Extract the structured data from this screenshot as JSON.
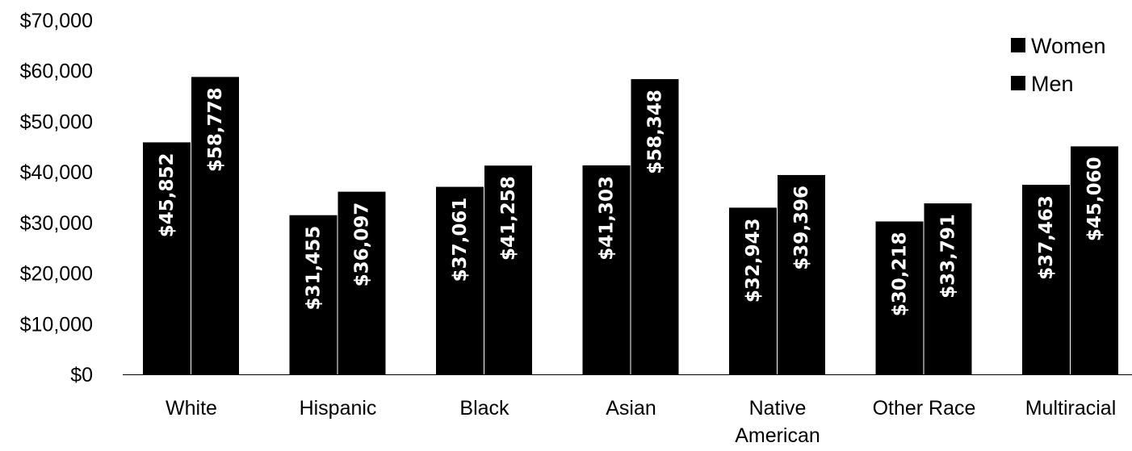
{
  "chart_data": {
    "type": "bar",
    "title": "",
    "xlabel": "",
    "ylabel": "",
    "categories": [
      "White",
      "Hispanic",
      "Black",
      "Asian",
      "Native American",
      "Other Race",
      "Multiracial"
    ],
    "series": [
      {
        "name": "Women",
        "values": [
          45852,
          31455,
          37061,
          41303,
          32943,
          30218,
          37463
        ],
        "color": "#000000"
      },
      {
        "name": "Men",
        "values": [
          58778,
          36097,
          41258,
          58348,
          39396,
          33791,
          45060
        ],
        "color": "#000000"
      }
    ],
    "data_labels": [
      [
        "$45,852",
        "$31,455",
        "$37,061",
        "$41,303",
        "$32,943",
        "$30,218",
        "$37,463"
      ],
      [
        "$58,778",
        "$36,097",
        "$41,258",
        "$58,348",
        "$39,396",
        "$33,791",
        "$45,060"
      ]
    ],
    "category_label_lines": [
      [
        "White"
      ],
      [
        "Hispanic"
      ],
      [
        "Black"
      ],
      [
        "Asian"
      ],
      [
        "Native",
        "American"
      ],
      [
        "Other Race"
      ],
      [
        "Multiracial"
      ]
    ],
    "ylim": [
      0,
      70000
    ],
    "ytick_values": [
      0,
      10000,
      20000,
      30000,
      40000,
      50000,
      60000,
      70000
    ],
    "ytick_labels": [
      "$0",
      "$10,000",
      "$20,000",
      "$30,000",
      "$40,000",
      "$50,000",
      "$60,000",
      "$70,000"
    ],
    "grid": false,
    "legend_position": "top-right"
  }
}
